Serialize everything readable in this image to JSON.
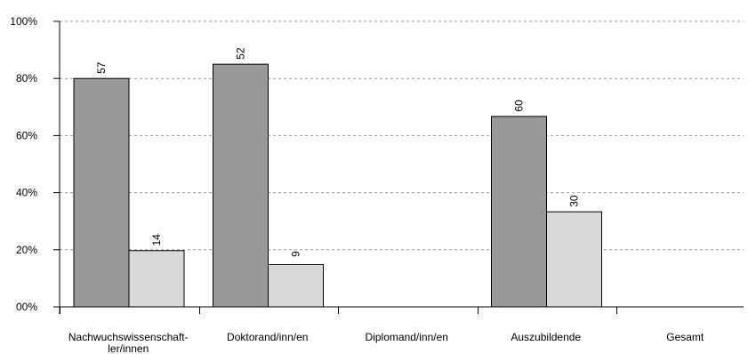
{
  "chart_data": {
    "type": "bar",
    "categories": [
      "Nachwuchswissenschaft-\nler/innen",
      "Doktorand/inn/en",
      "Diplomand/inn/en",
      "Auszubildende",
      "Gesamt"
    ],
    "series": [
      {
        "values": [
          80,
          85,
          null,
          66.7,
          null
        ],
        "labels": [
          "57",
          "52",
          null,
          "60",
          null
        ],
        "color": "#999999"
      },
      {
        "values": [
          19.7,
          14.8,
          null,
          33.3,
          null
        ],
        "labels": [
          "14",
          "9",
          null,
          "30",
          null
        ],
        "color": "#d9d9d9"
      }
    ],
    "yticks": [
      "00%",
      "20%",
      "40%",
      "60%",
      "80%",
      "100%"
    ],
    "ylim": [
      0,
      100
    ],
    "grid": true,
    "gridColor": "#999999"
  }
}
